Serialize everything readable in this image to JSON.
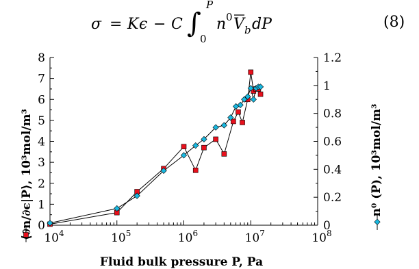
{
  "equation": {
    "sigma": "σ",
    "equals": "=",
    "K": "K",
    "epsilon": "ϵ",
    "minus": "−",
    "C": "C",
    "integral": "∫",
    "upper_limit": "P",
    "lower_limit": "0",
    "n": "n",
    "n_sup": "0",
    "V": "V",
    "V_sub": "b",
    "dP": "dP",
    "number": "(8)"
  },
  "chart_data": {
    "type": "scatter",
    "xlabel": "Fluid bulk pressure P, Pa",
    "xscale": "log",
    "xlim": [
      10000,
      100000000
    ],
    "x_ticks": [
      {
        "base": "10",
        "exp": "4",
        "value": 10000
      },
      {
        "base": "10",
        "exp": "5",
        "value": 100000
      },
      {
        "base": "10",
        "exp": "6",
        "value": 1000000
      },
      {
        "base": "10",
        "exp": "7",
        "value": 10000000
      },
      {
        "base": "10",
        "exp": "8",
        "value": 100000000
      }
    ],
    "ylabel_left": "⟨∂n/∂ϵ|P⟩, 10³mol/m³",
    "ylim_left": [
      0,
      8
    ],
    "y_ticks_left": [
      "0",
      "1",
      "2",
      "3",
      "4",
      "5",
      "6",
      "7",
      "8"
    ],
    "ylabel_right": "n⁰ (P), 10³mol/m³",
    "ylim_right": [
      0,
      1.2
    ],
    "y_ticks_right": [
      "0",
      "0.2",
      "0.4",
      "0.6",
      "0.8",
      "1",
      "1.2"
    ],
    "grid": false,
    "series": [
      {
        "axis": "left",
        "marker": "square",
        "color": "#e8101c",
        "x": [
          10000,
          100000,
          200000,
          500000,
          1000000,
          1500000,
          2000000,
          3000000,
          4000000,
          5500000,
          6500000,
          7500000,
          9000000,
          10000000,
          11000000,
          12000000,
          13000000,
          14000000
        ],
        "y": [
          0.05,
          0.6,
          1.6,
          2.7,
          3.75,
          2.62,
          3.7,
          4.1,
          3.4,
          4.95,
          5.4,
          4.9,
          6.0,
          7.3,
          6.4,
          6.5,
          6.5,
          6.25
        ]
      },
      {
        "axis": "right",
        "marker": "diamond",
        "color": "#19b8e0",
        "x": [
          10000,
          100000,
          200000,
          500000,
          1000000,
          1500000,
          2000000,
          3000000,
          4000000,
          5000000,
          6000000,
          7000000,
          8000000,
          9000000,
          10000000,
          11000000,
          12000000,
          13000000,
          14000000
        ],
        "y": [
          0.015,
          0.12,
          0.21,
          0.39,
          0.5,
          0.57,
          0.615,
          0.7,
          0.715,
          0.77,
          0.85,
          0.86,
          0.9,
          0.92,
          0.98,
          0.9,
          0.98,
          0.99,
          0.99
        ]
      }
    ]
  }
}
